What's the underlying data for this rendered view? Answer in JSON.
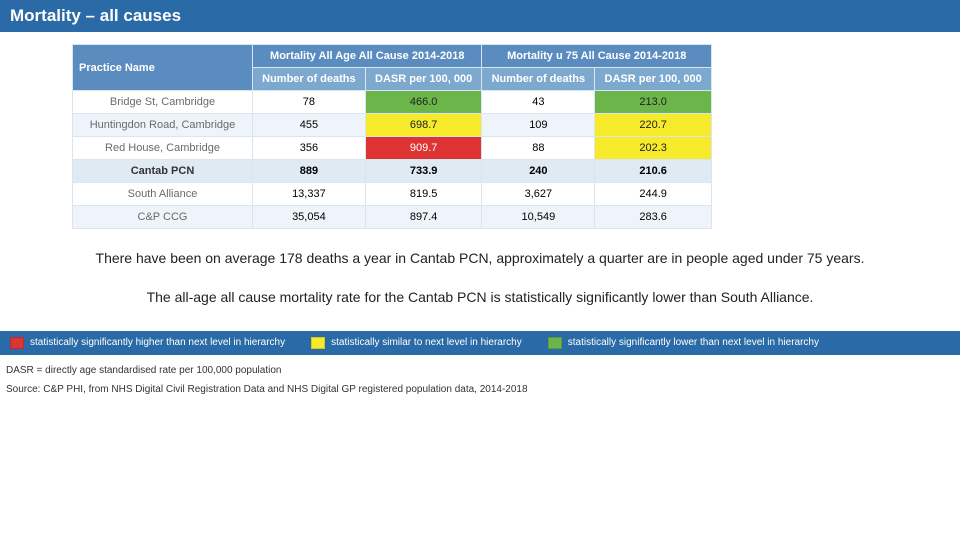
{
  "title": "Mortality – all causes",
  "table": {
    "headers": {
      "practice": "Practice Name",
      "group1": "Mortality All Age All Cause 2014-2018",
      "group2": "Mortality u 75 All Cause 2014-2018",
      "numDeaths": "Number of deaths",
      "dasr": "DASR per 100, 000"
    },
    "rows": [
      {
        "name": "Bridge St, Cambridge",
        "deaths1": "78",
        "dasr1": "466.0",
        "dasr1_cls": "dasr-green",
        "deaths2": "43",
        "dasr2": "213.0",
        "dasr2_cls": "dasr-green",
        "row_cls": "",
        "name_cls": "practice-col"
      },
      {
        "name": "Huntingdon Road, Cambridge",
        "deaths1": "455",
        "dasr1": "698.7",
        "dasr1_cls": "dasr-yellow",
        "deaths2": "109",
        "dasr2": "220.7",
        "dasr2_cls": "dasr-yellow",
        "row_cls": "row-alt",
        "name_cls": "practice-col"
      },
      {
        "name": "Red House, Cambridge",
        "deaths1": "356",
        "dasr1": "909.7",
        "dasr1_cls": "dasr-red",
        "deaths2": "88",
        "dasr2": "202.3",
        "dasr2_cls": "dasr-yellow",
        "row_cls": "",
        "name_cls": "practice-col"
      },
      {
        "name": "Cantab PCN",
        "deaths1": "889",
        "dasr1": "733.9",
        "dasr1_cls": "",
        "deaths2": "240",
        "dasr2": "210.6",
        "dasr2_cls": "",
        "row_cls": "row-bold",
        "name_cls": "practice-bold"
      },
      {
        "name": "South Alliance",
        "deaths1": "13,337",
        "dasr1": "819.5",
        "dasr1_cls": "",
        "deaths2": "3,627",
        "dasr2": "244.9",
        "dasr2_cls": "",
        "row_cls": "",
        "name_cls": "practice-col"
      },
      {
        "name": "C&P CCG",
        "deaths1": "35,054",
        "dasr1": "897.4",
        "dasr1_cls": "",
        "deaths2": "10,549",
        "dasr2": "283.6",
        "dasr2_cls": "",
        "row_cls": "row-alt",
        "name_cls": "practice-col"
      }
    ]
  },
  "para1": "There have been on average 178 deaths a year in Cantab PCN, approximately a quarter are in people aged under 75 years.",
  "para2": "The all-age all cause mortality rate for the Cantab PCN is statistically significantly lower than South Alliance.",
  "legend": {
    "higher": {
      "color": "#d33",
      "label": "statistically significantly higher than next level in hierarchy"
    },
    "similar": {
      "color": "#f7ea2a",
      "label": "statistically similar to next level in hierarchy"
    },
    "lower": {
      "color": "#6bb54a",
      "label": "statistically significantly lower than next level in hierarchy"
    }
  },
  "footnote1": "DASR = directly age standardised rate per 100,000 population",
  "footnote2": "Source: C&P PHI, from NHS Digital Civil Registration Data and NHS Digital GP registered population data, 2014-2018",
  "colors": {
    "header_bg": "#2a6aa6",
    "hdr_dark": "#5b8cbf",
    "hdr_light": "#7ea9ce",
    "row_alt": "#eef4fa",
    "row_bold": "#dfeaf3",
    "green": "#6bb54a",
    "yellow": "#f7ea2a",
    "red": "#d33"
  }
}
